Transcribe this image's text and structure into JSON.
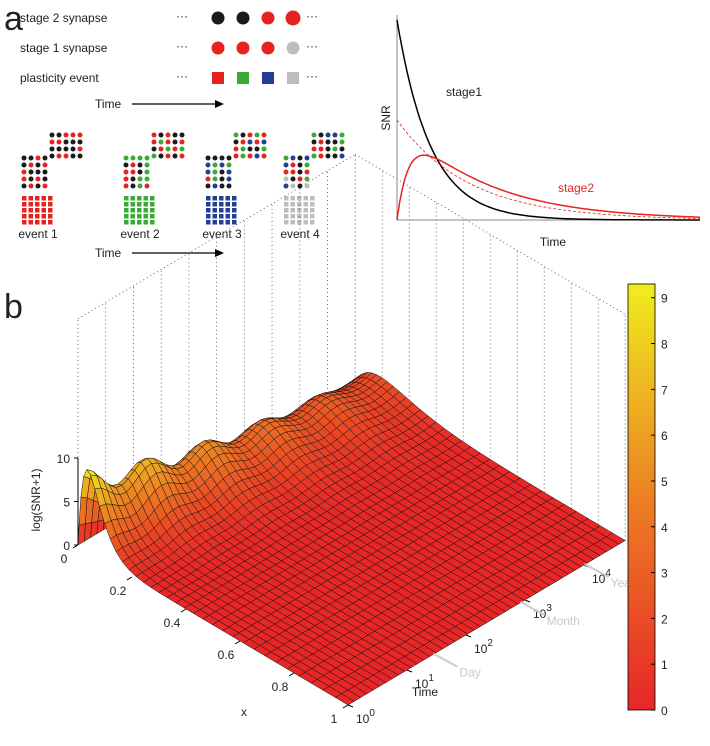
{
  "panel_a": {
    "label": "a",
    "rows": [
      "stage 2 synapse",
      "stage 1 synapse",
      "plasticity event"
    ],
    "time_label": "Time",
    "events": [
      "event 1",
      "event 2",
      "event 3",
      "event 4"
    ],
    "events_time_label": "Time",
    "plot": {
      "y_label": "SNR",
      "x_label": "Time",
      "curves": [
        "stage1",
        "stage2"
      ]
    }
  },
  "panel_b": {
    "label": "b",
    "z_label": "log(SNR+1)",
    "zlim": [
      0,
      10
    ],
    "zticks": [
      0,
      5,
      10
    ],
    "x_label": "x",
    "xlim": [
      0,
      1
    ],
    "xticks": [
      0,
      0.2,
      0.4,
      0.6,
      0.8,
      1
    ],
    "time_label": "Time",
    "time_lim": [
      1,
      50000
    ],
    "time_ticks": [
      {
        "value": 1,
        "label": "10",
        "exponent": "0"
      },
      {
        "value": 10,
        "label": "10",
        "exponent": "1"
      },
      {
        "value": 100,
        "label": "10",
        "exponent": "2"
      },
      {
        "value": 1000,
        "label": "10",
        "exponent": "3"
      },
      {
        "value": 10000,
        "label": "10",
        "exponent": "4"
      }
    ],
    "time_markers": [
      {
        "label": "Day",
        "value": 24
      },
      {
        "label": "Month",
        "value": 720
      },
      {
        "label": "Year",
        "value": 8760
      }
    ],
    "colorbar": {
      "lim": [
        0,
        9.3
      ],
      "ticks": [
        0,
        1,
        2,
        3,
        4,
        5,
        6,
        7,
        8,
        9
      ]
    }
  }
}
